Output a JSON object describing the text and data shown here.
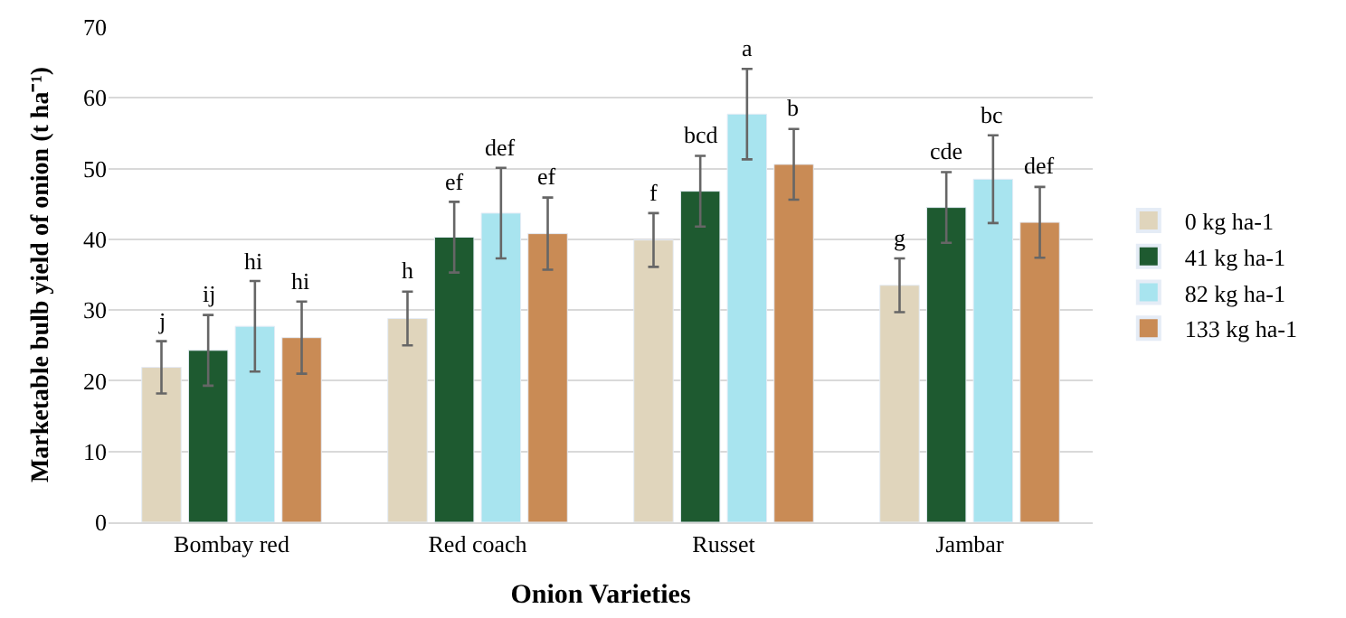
{
  "chart_data": {
    "type": "bar",
    "xlabel": "Onion Varieties",
    "ylabel": "Marketable bulb yield of onion (t ha⁻¹)",
    "categories": [
      "Bombay red",
      "Red coach",
      "Russet",
      "Jambar"
    ],
    "series": [
      {
        "name": "0 kg ha-1",
        "color": "#e0d5bc",
        "values": [
          21.9,
          28.8,
          39.9,
          33.5
        ],
        "errors": [
          3.7,
          3.8,
          3.8,
          3.8
        ],
        "value_labels": [
          "j",
          "h",
          "f",
          "g"
        ]
      },
      {
        "name": "41 kg ha-1",
        "color": "#1e5a30",
        "values": [
          24.3,
          40.3,
          46.8,
          44.5
        ],
        "errors": [
          5.0,
          5.0,
          5.0,
          5.0
        ],
        "value_labels": [
          "ij",
          "ef",
          "bcd",
          "cde"
        ]
      },
      {
        "name": "82 kg ha-1",
        "color": "#a8e4ef",
        "values": [
          27.7,
          43.7,
          57.7,
          48.5
        ],
        "errors": [
          6.4,
          6.4,
          6.4,
          6.2
        ],
        "value_labels": [
          "hi",
          "def",
          "a",
          "bc"
        ]
      },
      {
        "name": "133 kg ha-1",
        "color": "#c98b55",
        "values": [
          26.1,
          40.8,
          50.6,
          42.4
        ],
        "errors": [
          5.1,
          5.1,
          5.0,
          5.0
        ],
        "value_labels": [
          "hi",
          "ef",
          "b",
          "def"
        ]
      }
    ],
    "ylim": [
      0,
      70
    ],
    "yticks": [
      0,
      10,
      20,
      30,
      40,
      50,
      60,
      70
    ],
    "grid": "y",
    "legend": "right"
  }
}
